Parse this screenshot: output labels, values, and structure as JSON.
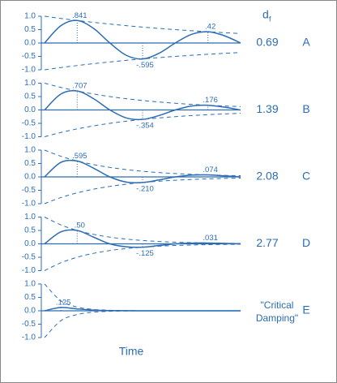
{
  "column_header": "d",
  "column_header_sub": "f",
  "xlabel": "Time",
  "chart_data": [
    {
      "type": "line",
      "color": "#2b6cb5",
      "letter": "A",
      "df": 0.69,
      "x": [
        0,
        0.5,
        1,
        1.5,
        2,
        2.5,
        3,
        3.5,
        4,
        4.5,
        5,
        5.5,
        6
      ],
      "xlim": [
        0,
        6
      ],
      "ylim": [
        -1,
        1
      ],
      "yticks": [
        {
          "value": 1,
          "label": "1.0"
        },
        {
          "value": 0.5,
          "label": "0.5"
        },
        {
          "value": 0,
          "label": "0.0"
        },
        {
          "value": -0.5,
          "label": "-0.5"
        },
        {
          "value": -1,
          "label": "-1.0"
        }
      ],
      "series": [
        {
          "dashed": false,
          "values": [
            0,
            0.648,
            0.841,
            0.545,
            0,
            -0.458,
            -0.595,
            -0.385,
            0,
            0.325,
            0.42,
            0.273,
            0
          ]
        },
        {
          "dashed": true,
          "values": [
            1,
            0.917,
            0.841,
            0.771,
            0.707,
            0.648,
            0.595,
            0.545,
            0.5,
            0.459,
            0.42,
            0.386,
            0.354
          ]
        },
        {
          "dashed": true,
          "values": [
            -1,
            -0.917,
            -0.841,
            -0.771,
            -0.707,
            -0.648,
            -0.595,
            -0.545,
            -0.5,
            -0.459,
            -0.42,
            -0.386,
            -0.354
          ]
        }
      ],
      "annotations": [
        {
          "x": 1,
          "value": 0.841,
          "label": ".841"
        },
        {
          "x": 3,
          "value": -0.595,
          "label": "-.595"
        },
        {
          "x": 5,
          "value": 0.42,
          "label": ".42"
        }
      ]
    },
    {
      "type": "line",
      "color": "#2b6cb5",
      "letter": "B",
      "df": 1.39,
      "x": [
        0,
        0.5,
        1,
        1.5,
        2,
        2.5,
        3,
        3.5,
        4,
        4.5,
        5,
        5.5,
        6
      ],
      "xlim": [
        0,
        6
      ],
      "ylim": [
        -1,
        1
      ],
      "yticks": [
        {
          "value": 1,
          "label": "1.0"
        },
        {
          "value": 0.5,
          "label": "0.5"
        },
        {
          "value": 0,
          "label": "0.0"
        },
        {
          "value": -0.5,
          "label": "-0.5"
        },
        {
          "value": -1,
          "label": "-1.0"
        }
      ],
      "series": [
        {
          "dashed": false,
          "values": [
            0,
            0.595,
            0.707,
            0.42,
            0,
            -0.297,
            -0.354,
            -0.21,
            0,
            0.149,
            0.176,
            0.105,
            0
          ]
        },
        {
          "dashed": true,
          "values": [
            1,
            0.841,
            0.707,
            0.595,
            0.5,
            0.42,
            0.354,
            0.297,
            0.25,
            0.21,
            0.176,
            0.149,
            0.125
          ]
        },
        {
          "dashed": true,
          "values": [
            -1,
            -0.841,
            -0.707,
            -0.595,
            -0.5,
            -0.42,
            -0.354,
            -0.297,
            -0.25,
            -0.21,
            -0.176,
            -0.149,
            -0.125
          ]
        }
      ],
      "annotations": [
        {
          "x": 1,
          "value": 0.707,
          "label": ".707"
        },
        {
          "x": 3,
          "value": -0.354,
          "label": "-.354"
        },
        {
          "x": 5,
          "value": 0.176,
          "label": ".176"
        }
      ]
    },
    {
      "type": "line",
      "color": "#2b6cb5",
      "letter": "C",
      "df": 2.08,
      "x": [
        0,
        0.5,
        1,
        1.5,
        2,
        2.5,
        3,
        3.5,
        4,
        4.5,
        5,
        5.5,
        6
      ],
      "xlim": [
        0,
        6
      ],
      "ylim": [
        -1,
        1
      ],
      "yticks": [
        {
          "value": 1,
          "label": "1.0"
        },
        {
          "value": 0.5,
          "label": "0.5"
        },
        {
          "value": 0,
          "label": "0.0"
        },
        {
          "value": -0.5,
          "label": "-0.5"
        },
        {
          "value": -1,
          "label": "-1.0"
        }
      ],
      "series": [
        {
          "dashed": false,
          "values": [
            0,
            0.545,
            0.595,
            0.325,
            0,
            -0.193,
            -0.21,
            -0.115,
            0,
            0.068,
            0.074,
            0.04,
            0
          ]
        },
        {
          "dashed": true,
          "values": [
            1,
            0.771,
            0.595,
            0.459,
            0.354,
            0.273,
            0.21,
            0.162,
            0.125,
            0.097,
            0.074,
            0.057,
            0.044
          ]
        },
        {
          "dashed": true,
          "values": [
            -1,
            -0.771,
            -0.595,
            -0.459,
            -0.354,
            -0.273,
            -0.21,
            -0.162,
            -0.125,
            -0.097,
            -0.074,
            -0.057,
            -0.044
          ]
        }
      ],
      "annotations": [
        {
          "x": 1,
          "value": 0.595,
          "label": ".595"
        },
        {
          "x": 3,
          "value": -0.21,
          "label": "-.210"
        },
        {
          "x": 5,
          "value": 0.074,
          "label": ".074"
        }
      ]
    },
    {
      "type": "line",
      "color": "#2b6cb5",
      "letter": "D",
      "df": 2.77,
      "x": [
        0,
        0.5,
        1,
        1.5,
        2,
        2.5,
        3,
        3.5,
        4,
        4.5,
        5,
        5.5,
        6
      ],
      "xlim": [
        0,
        6
      ],
      "ylim": [
        -1,
        1
      ],
      "yticks": [
        {
          "value": 1,
          "label": "1.0"
        },
        {
          "value": 0.5,
          "label": "0.5"
        },
        {
          "value": 0,
          "label": "0.0"
        },
        {
          "value": -0.5,
          "label": "-0.5"
        },
        {
          "value": -1,
          "label": "-1.0"
        }
      ],
      "series": [
        {
          "dashed": false,
          "values": [
            0,
            0.45,
            0.5,
            0.25,
            0,
            -0.11,
            -0.125,
            -0.062,
            0,
            0.028,
            0.031,
            0.016,
            0
          ]
        },
        {
          "dashed": true,
          "values": [
            1,
            0.707,
            0.5,
            0.354,
            0.25,
            0.177,
            0.125,
            0.088,
            0.062,
            0.044,
            0.031,
            0.022,
            0.016
          ]
        },
        {
          "dashed": true,
          "values": [
            -1,
            -0.707,
            -0.5,
            -0.354,
            -0.25,
            -0.177,
            -0.125,
            -0.088,
            -0.062,
            -0.044,
            -0.031,
            -0.022,
            -0.016
          ]
        }
      ],
      "annotations": [
        {
          "x": 1,
          "value": 0.5,
          "label": ".50"
        },
        {
          "x": 3,
          "value": -0.125,
          "label": "-.125"
        },
        {
          "x": 5,
          "value": 0.031,
          "label": ".031"
        }
      ]
    },
    {
      "type": "line",
      "color": "#2b6cb5",
      "letter": "E",
      "df_label": [
        "\"Critical",
        "Damping\""
      ],
      "x": [
        0,
        0.5,
        1,
        1.5,
        2,
        2.5,
        3,
        3.5,
        4,
        4.5,
        5,
        5.5,
        6
      ],
      "xlim": [
        0,
        6
      ],
      "ylim": [
        -1,
        1
      ],
      "yticks": [
        {
          "value": 1,
          "label": "1.0"
        },
        {
          "value": 0.5,
          "label": "0.5"
        },
        {
          "value": 0,
          "label": "0.0"
        },
        {
          "value": -0.5,
          "label": "-0.5"
        },
        {
          "value": -1,
          "label": "-1.0"
        }
      ],
      "series": [
        {
          "dashed": false,
          "values": [
            0,
            0.125,
            0.07,
            0.025,
            0.008,
            0.002,
            0,
            0,
            0,
            0,
            0,
            0,
            0
          ]
        },
        {
          "dashed": true,
          "values": [
            1,
            0.37,
            0.14,
            0.05,
            0.02,
            0.007,
            0,
            0,
            0,
            0,
            0,
            0,
            0
          ]
        },
        {
          "dashed": true,
          "values": [
            -1,
            -0.37,
            -0.14,
            -0.05,
            -0.02,
            -0.007,
            0,
            0,
            0,
            0,
            0,
            0,
            0
          ]
        }
      ],
      "annotations": [
        {
          "x": 0.5,
          "value": 0.125,
          "label": ".125"
        }
      ]
    }
  ]
}
